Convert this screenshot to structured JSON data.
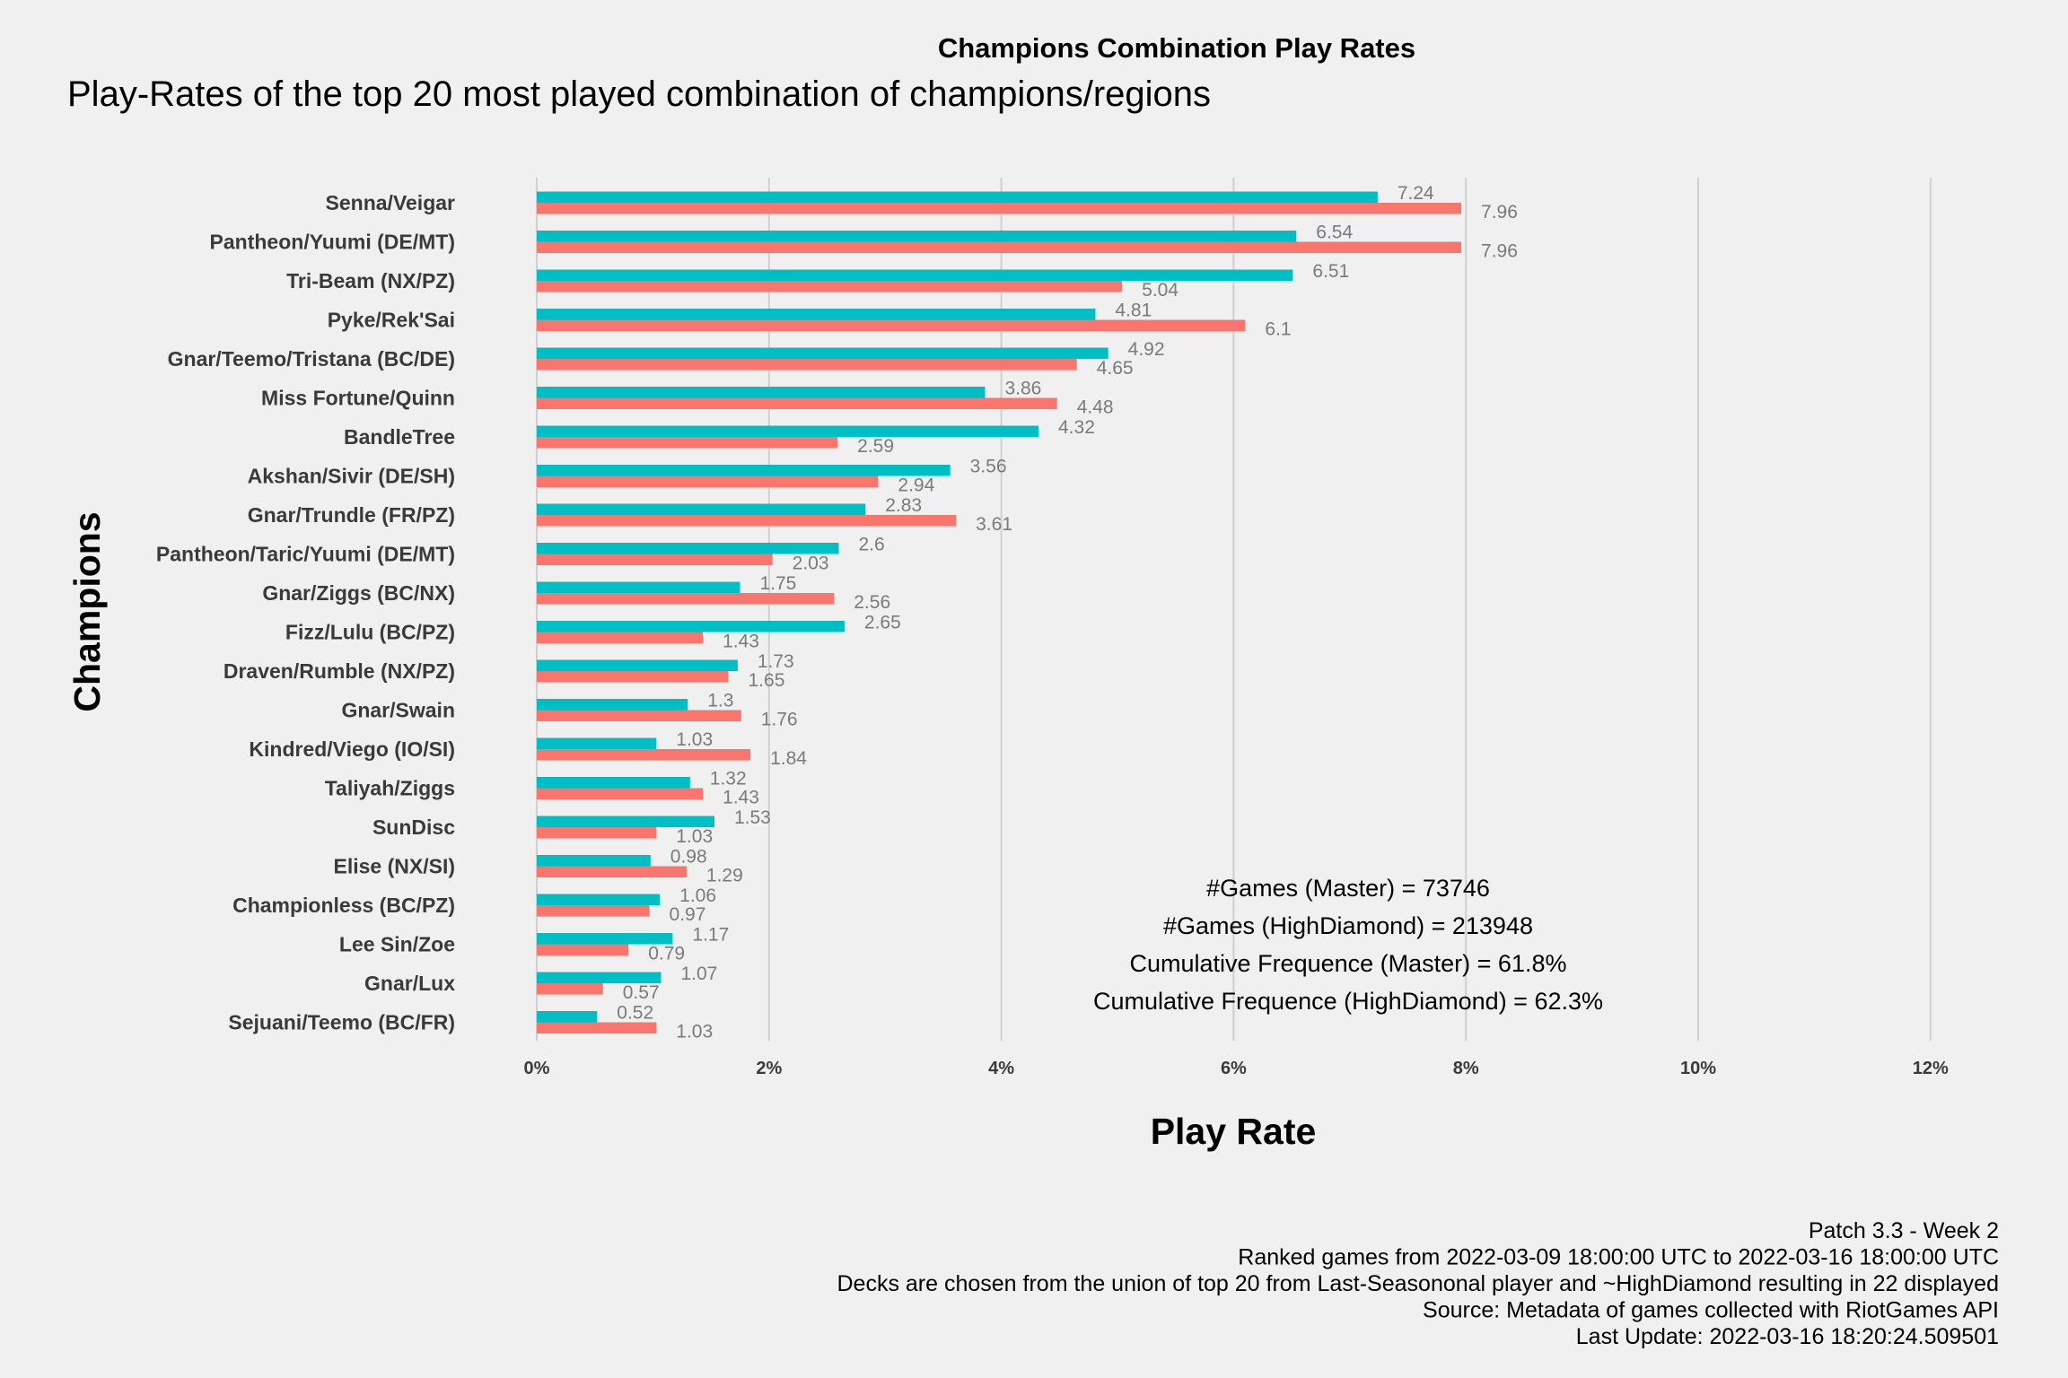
{
  "chart_data": {
    "type": "bar",
    "orientation": "horizontal",
    "title": "Champions Combination Play Rates",
    "subtitle": "Play-Rates of the top 20 most played combination of champions/regions",
    "xlabel": "Play Rate",
    "ylabel": "Champions",
    "xlim": [
      0,
      12
    ],
    "xticks": [
      "0%",
      "2%",
      "4%",
      "6%",
      "8%",
      "10%",
      "12%"
    ],
    "grid": true,
    "categories": [
      "Senna/Veigar",
      "Pantheon/Yuumi (DE/MT)",
      "Tri-Beam (NX/PZ)",
      "Pyke/Rek'Sai",
      "Gnar/Teemo/Tristana (BC/DE)",
      "Miss Fortune/Quinn",
      "BandleTree",
      "Akshan/Sivir (DE/SH)",
      "Gnar/Trundle (FR/PZ)",
      "Pantheon/Taric/Yuumi (DE/MT)",
      "Gnar/Ziggs (BC/NX)",
      "Fizz/Lulu (BC/PZ)",
      "Draven/Rumble (NX/PZ)",
      "Gnar/Swain",
      "Kindred/Viego (IO/SI)",
      "Taliyah/Ziggs",
      "SunDisc",
      "Elise (NX/SI)",
      "Championless (BC/PZ)",
      "Lee Sin/Zoe",
      "Gnar/Lux",
      "Sejuani/Teemo (BC/FR)"
    ],
    "series": [
      {
        "color": "#00bfc4",
        "values": [
          7.24,
          6.54,
          6.51,
          4.81,
          4.92,
          3.86,
          4.32,
          3.56,
          2.83,
          2.6,
          1.75,
          2.65,
          1.73,
          1.3,
          1.03,
          1.32,
          1.53,
          0.98,
          1.06,
          1.17,
          1.07,
          0.52
        ],
        "labels": [
          "7.24",
          "6.54",
          "6.51",
          "4.81",
          "4.92",
          "3.86",
          "4.32",
          "3.56",
          "2.83",
          "2.6",
          "1.75",
          "2.65",
          "1.73",
          "1.3",
          "1.03",
          "1.32",
          "1.53",
          "0.98",
          "1.06",
          "1.17",
          "1.07",
          "0.52"
        ]
      },
      {
        "color": "#f8766d",
        "values": [
          7.96,
          7.96,
          5.04,
          6.1,
          4.65,
          4.48,
          2.59,
          2.94,
          3.61,
          2.03,
          2.56,
          1.43,
          1.65,
          1.76,
          1.84,
          1.43,
          1.03,
          1.29,
          0.97,
          0.79,
          0.57,
          1.03
        ],
        "labels": [
          "7.96",
          "7.96",
          "5.04",
          "6.1",
          "4.65",
          "4.48",
          "2.59",
          "2.94",
          "3.61",
          "2.03",
          "2.56",
          "1.43",
          "1.65",
          "1.76",
          "1.84",
          "1.43",
          "1.03",
          "1.29",
          "0.97",
          "0.79",
          "0.57",
          "1.03"
        ]
      }
    ],
    "annotations": [
      "#Games (Master) = 73746",
      "#Games (HighDiamond) = 213948",
      "Cumulative Frequence (Master) = 61.8%",
      "Cumulative Frequence (HighDiamond) = 62.3%"
    ]
  },
  "footer": [
    "Patch 3.3 - Week 2",
    "Ranked games from 2022-03-09 18:00:00 UTC to 2022-03-16 18:00:00 UTC",
    "Decks are chosen from the union of top 20 from Last-Seasononal player and ~HighDiamond resulting in 22 displayed",
    "Source: Metadata of games collected with RiotGames API",
    "Last Update: 2022-03-16 18:20:24.509501"
  ]
}
